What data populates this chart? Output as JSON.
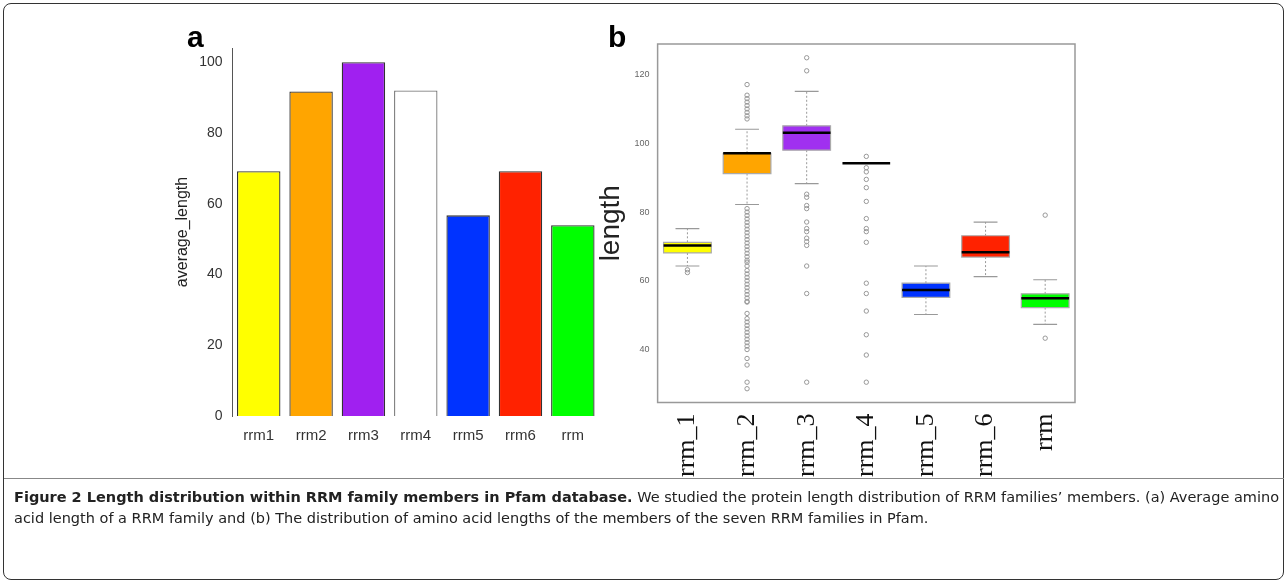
{
  "chart_data": [
    {
      "type": "bar",
      "title": "a",
      "ylabel": "average_length",
      "categories": [
        "rrm1",
        "rrm2",
        "rrm3",
        "rrm4",
        "rrm5",
        "rrm6",
        "rrm"
      ],
      "values": [
        69.2,
        91.7,
        100,
        92.0,
        56.7,
        69.2,
        53.9
      ],
      "colors": [
        "#ffff00",
        "#ffa500",
        "#a020f0",
        "#ffffff",
        "#0033ff",
        "#ff2200",
        "#00ff00"
      ],
      "ylim": [
        0,
        104
      ],
      "yticks": [
        0,
        20,
        40,
        60,
        80,
        100
      ]
    },
    {
      "type": "box",
      "title": "b",
      "ylabel": "length",
      "categories": [
        "rrm_1",
        "rrm_2",
        "rrm_3",
        "rrm_4",
        "rrm_5",
        "rrm_6",
        "rrm"
      ],
      "colors": [
        "#ffff00",
        "#ffa500",
        "#a030f0",
        "#000000",
        "#0033ff",
        "#ff2200",
        "#00ff00"
      ],
      "boxes": [
        {
          "low": 64.3,
          "q1": 68.1,
          "median": 70.3,
          "q3": 71.2,
          "high": 75.2,
          "outliers": [
            63.2,
            62.4
          ]
        },
        {
          "low": 82.2,
          "q1": 91.2,
          "median": 97.1,
          "q3": 97.1,
          "high": 104.1,
          "outliers": [
            117.1,
            114,
            113,
            112,
            111,
            110,
            109,
            108,
            107.1,
            81,
            80,
            79,
            78,
            77,
            76,
            75,
            74,
            73,
            72,
            71,
            70,
            69,
            68,
            67,
            66,
            65.4,
            64.3,
            63,
            62,
            61,
            60,
            59,
            58,
            57,
            56,
            55,
            54,
            53.8,
            50.5,
            49,
            48,
            47,
            46,
            45,
            44,
            43,
            42,
            41,
            40,
            37.4,
            35.5,
            30.5,
            28.6
          ]
        },
        {
          "low": 88.3,
          "q1": 98.0,
          "median": 103.1,
          "q3": 105.1,
          "high": 115.1,
          "outliers": [
            124.9,
            121.1,
            85.2,
            84.3,
            81.9,
            81.0,
            77.1,
            75.2,
            74.3,
            72.4,
            71.4,
            70.3,
            64.3,
            56.3,
            30.5
          ]
        },
        {
          "low": 94.2,
          "q1": 94.2,
          "median": 94.2,
          "q3": 94.2,
          "high": 94.2,
          "outliers": [
            96.2,
            92.9,
            91.7,
            89.5,
            87.1,
            83.1,
            78.1,
            75.2,
            74.3,
            71.2,
            59.3,
            56.3,
            51.2,
            44.3,
            38.4,
            30.5
          ]
        },
        {
          "low": 50.2,
          "q1": 55.2,
          "median": 57.3,
          "q3": 59.3,
          "high": 64.3
        },
        {
          "low": 61.2,
          "q1": 66.9,
          "median": 68.3,
          "q3": 73.1,
          "high": 77.1
        },
        {
          "low": 47.3,
          "q1": 52.2,
          "median": 54.9,
          "q3": 56.2,
          "high": 60.3,
          "outliers": [
            79.1,
            43.3
          ]
        }
      ],
      "ylim": [
        24.6,
        128.9
      ],
      "yticks": [
        40,
        60,
        80,
        100,
        120
      ]
    },
    {
      "type": "other",
      "title": "Figure 2 Length distribution within RRM family members in Pfam database.",
      "annotations": [
        "We studied the protein length distribution of RRM families’ members. (a) Average amino acid length of a RRM family and (b) The distribution of amino acid lengths of the members of the seven RRM families in Pfam."
      ]
    }
  ]
}
